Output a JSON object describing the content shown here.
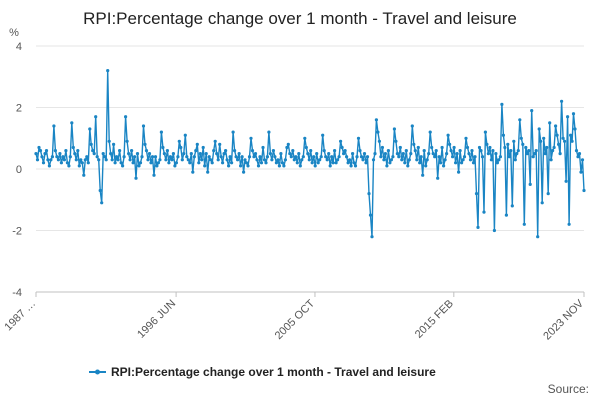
{
  "colors": {
    "series": "#1a85c4",
    "grid": "#e6e6e6",
    "axis": "#c0c0c0"
  },
  "chart_data": {
    "type": "line",
    "title": "RPI:Percentage change over 1 month - Travel and leisure",
    "ylabel": "%",
    "xlabel": "",
    "ylim": [
      -4,
      4
    ],
    "yticks": [
      4,
      2,
      0,
      -2,
      -4
    ],
    "xlim": [
      "1987-01",
      "2023-11"
    ],
    "xticks": [
      {
        "date": "1987-01",
        "label": "1987 …"
      },
      {
        "date": "1996-06",
        "label": "1996 JUN"
      },
      {
        "date": "2005-10",
        "label": "2005 OCT"
      },
      {
        "date": "2015-02",
        "label": "2015 FEB"
      },
      {
        "date": "2023-11",
        "label": "2023 NOV"
      }
    ],
    "grid": true,
    "legend_position": "bottom",
    "series": [
      {
        "name": "RPI:Percentage change over 1 month - Travel and leisure",
        "frequency": "monthly",
        "start": "1987-01",
        "values": [
          0.5,
          0.3,
          0.7,
          0.6,
          0.4,
          0.2,
          0.5,
          0.6,
          0.3,
          0.1,
          0.3,
          0.4,
          1.4,
          0.6,
          0.4,
          0.3,
          0.5,
          0.2,
          0.4,
          0.3,
          0.6,
          0.2,
          0.1,
          0.4,
          1.5,
          0.7,
          0.5,
          0.3,
          0.6,
          0.1,
          0.3,
          0.2,
          -0.2,
          0.3,
          0.4,
          0.2,
          1.3,
          0.8,
          0.6,
          0.5,
          1.7,
          0.4,
          0.3,
          -0.7,
          -1.1,
          0.5,
          0.4,
          0.3,
          3.2,
          0.9,
          0.5,
          0.3,
          0.8,
          0.2,
          0.4,
          0.3,
          0.6,
          0.2,
          0.1,
          0.4,
          1.7,
          0.9,
          0.5,
          0.3,
          0.6,
          0.2,
          0.4,
          -0.3,
          0.5,
          0.1,
          0.2,
          0.4,
          1.4,
          0.8,
          0.6,
          0.3,
          0.5,
          0.2,
          0.4,
          -0.2,
          0.4,
          0.1,
          0.2,
          0.3,
          1.2,
          0.7,
          0.5,
          0.3,
          0.6,
          0.2,
          0.4,
          0.3,
          0.5,
          0.1,
          0.2,
          0.4,
          0.9,
          0.7,
          0.3,
          0.5,
          1.1,
          0.4,
          0.3,
          0.2,
          0.5,
          -0.1,
          0.4,
          0.6,
          0.8,
          0.2,
          0.5,
          0.3,
          0.7,
          0.1,
          0.5,
          -0.1,
          0.4,
          0.3,
          0.2,
          0.6,
          0.9,
          0.5,
          0.3,
          0.8,
          0.4,
          0.2,
          0.5,
          0.6,
          0.3,
          0.1,
          0.4,
          0.2,
          1.2,
          0.6,
          0.4,
          0.3,
          0.5,
          0.1,
          0.4,
          -0.1,
          0.3,
          0.2,
          0.1,
          0.4,
          1.0,
          0.6,
          0.4,
          0.5,
          0.3,
          0.1,
          0.4,
          0.2,
          0.7,
          0.3,
          0.2,
          0.4,
          1.2,
          0.5,
          0.3,
          0.6,
          0.4,
          0.2,
          0.3,
          0.1,
          0.5,
          0.2,
          0.1,
          0.3,
          0.7,
          0.8,
          0.5,
          0.4,
          0.6,
          0.3,
          0.4,
          0.2,
          0.5,
          0.1,
          0.3,
          0.4,
          1.0,
          0.7,
          0.5,
          0.3,
          0.6,
          0.2,
          0.4,
          0.1,
          0.5,
          0.2,
          0.3,
          0.4,
          1.1,
          0.6,
          0.4,
          0.3,
          0.5,
          0.1,
          0.4,
          0.2,
          0.6,
          0.2,
          0.3,
          0.4,
          0.9,
          0.7,
          0.5,
          0.6,
          0.4,
          0.2,
          0.3,
          0.1,
          0.5,
          0.2,
          0.1,
          0.4,
          1.0,
          0.6,
          0.4,
          0.3,
          0.5,
          0.2,
          0.4,
          -0.8,
          -1.5,
          -2.2,
          0.3,
          0.5,
          1.6,
          1.2,
          0.9,
          0.4,
          0.7,
          0.3,
          0.5,
          0.1,
          0.6,
          0.2,
          0.3,
          0.4,
          1.3,
          0.9,
          0.5,
          0.4,
          0.7,
          0.3,
          0.5,
          0.2,
          0.6,
          0.1,
          0.3,
          0.5,
          1.4,
          0.8,
          0.6,
          0.3,
          0.7,
          0.2,
          0.4,
          -0.2,
          0.6,
          0.1,
          0.3,
          0.5,
          1.2,
          0.7,
          0.5,
          0.4,
          0.6,
          -0.3,
          0.4,
          0.2,
          0.7,
          0.1,
          0.3,
          0.5,
          1.1,
          0.8,
          0.6,
          0.4,
          0.7,
          0.2,
          0.5,
          -0.1,
          0.6,
          0.2,
          0.3,
          0.4,
          1.0,
          0.7,
          0.5,
          0.3,
          0.6,
          0.2,
          0.4,
          -0.8,
          -1.9,
          0.7,
          0.6,
          0.4,
          -1.4,
          1.2,
          0.8,
          0.5,
          0.7,
          0.3,
          0.6,
          -2.0,
          0.5,
          0.2,
          0.3,
          0.4,
          2.1,
          1.1,
          0.7,
          -1.5,
          0.8,
          0.4,
          0.6,
          -1.2,
          0.9,
          0.3,
          0.5,
          0.6,
          1.6,
          1.0,
          0.8,
          -1.8,
          0.7,
          0.5,
          0.6,
          -0.5,
          1.9,
          0.4,
          0.5,
          0.6,
          -2.2,
          1.3,
          0.9,
          -1.1,
          1.0,
          0.5,
          0.7,
          -0.8,
          1.5,
          0.3,
          0.6,
          0.7,
          1.4,
          1.1,
          0.8,
          0.5,
          2.2,
          1.0,
          0.9,
          -0.4,
          1.7,
          -1.8,
          1.1,
          0.9,
          1.8,
          1.3,
          0.6,
          0.4,
          0.5,
          -0.1,
          0.3,
          -0.7
        ]
      }
    ]
  },
  "legend": {
    "label": "RPI:Percentage change over 1 month - Travel and leisure"
  },
  "source": {
    "label": "Source:"
  }
}
